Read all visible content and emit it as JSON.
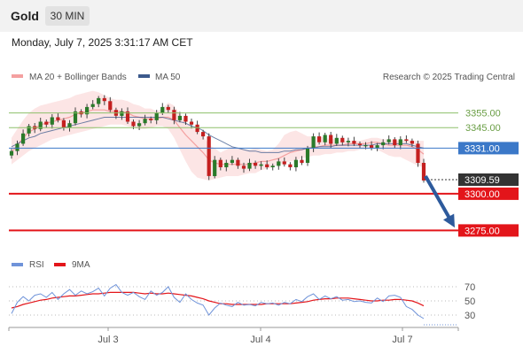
{
  "header": {
    "title": "Gold",
    "interval": "30 MIN"
  },
  "timestamp": "Monday, July 7, 2025 3:31:17 AM CET",
  "credit": "Research © 2025 Trading Central",
  "colors": {
    "bb": "#f4a0a0",
    "ma50": "#3c5a8c",
    "support": "#e3151a",
    "resistance": "#8dc06a",
    "current": "#3b78c8",
    "up": "#2a7a2a",
    "down": "#c42020",
    "arrow": "#2d5a9c",
    "rsi": "#6f93d9",
    "rsi_ma": "#e3151a"
  },
  "chart_data": [
    {
      "type": "candlestick",
      "legend": [
        {
          "label": "MA 20 + Bollinger Bands",
          "color": "#f4a0a0"
        },
        {
          "label": "MA 50",
          "color": "#3c5a8c"
        }
      ],
      "x_ticks": [
        "Jul 3",
        "Jul 4",
        "Jul 7"
      ],
      "y_range": [
        3262,
        3374
      ],
      "resistance_levels": [
        {
          "label": "3355.00",
          "value": 3355
        },
        {
          "label": "3345.00",
          "value": 3345
        }
      ],
      "current_price": {
        "label": "3331.00",
        "value": 3331
      },
      "last_price": {
        "label": "3309.59",
        "value": 3309.59
      },
      "support_levels": [
        {
          "label": "3300.00",
          "value": 3300
        },
        {
          "label": "3275.00",
          "value": 3275
        }
      ],
      "forecast_arrow": {
        "from": 3312,
        "to": 3277
      },
      "close": [
        3329,
        3334,
        3341,
        3346,
        3344,
        3349,
        3347,
        3352,
        3350,
        3345,
        3348,
        3356,
        3354,
        3359,
        3361,
        3365,
        3363,
        3357,
        3353,
        3356,
        3349,
        3346,
        3348,
        3351,
        3350,
        3355,
        3359,
        3357,
        3350,
        3353,
        3349,
        3347,
        3342,
        3339,
        3312,
        3323,
        3318,
        3321,
        3323,
        3319,
        3317,
        3321,
        3319,
        3320,
        3318,
        3319,
        3322,
        3320,
        3318,
        3323,
        3321,
        3331,
        3339,
        3335,
        3340,
        3334,
        3338,
        3335,
        3336,
        3334,
        3333,
        3333,
        3331,
        3333,
        3335,
        3337,
        3333,
        3337,
        3336,
        3334,
        3321,
        3309
      ],
      "bb_upper": [
        3338,
        3344,
        3350,
        3355,
        3358,
        3360,
        3361,
        3362,
        3363,
        3364,
        3365,
        3367,
        3368,
        3369,
        3370,
        3369,
        3367,
        3365,
        3364,
        3364,
        3363,
        3361,
        3360,
        3358,
        3358,
        3356,
        3358,
        3362,
        3360,
        3354,
        3349,
        3345,
        3343,
        3340,
        3333,
        3331,
        3328,
        3330,
        3332,
        3331,
        3330,
        3330,
        3331,
        3330,
        3329,
        3330,
        3334,
        3340,
        3342,
        3343,
        3341,
        3339,
        3339,
        3339,
        3338,
        3337,
        3337,
        3336,
        3336,
        3336,
        3336,
        3337,
        3338,
        3338,
        3337,
        3337,
        3336,
        3336,
        3337,
        3336,
        3336,
        3336
      ],
      "ma20": [
        3328,
        3333,
        3338,
        3342,
        3344,
        3347,
        3348,
        3349,
        3350,
        3351,
        3352,
        3354,
        3355,
        3356,
        3357,
        3357,
        3357,
        3356,
        3356,
        3356,
        3355,
        3353,
        3352,
        3351,
        3351,
        3351,
        3352,
        3352,
        3350,
        3345,
        3340,
        3336,
        3332,
        3328,
        3323,
        3321,
        3320,
        3320,
        3320,
        3320,
        3320,
        3320,
        3321,
        3322,
        3322,
        3323,
        3324,
        3326,
        3328,
        3329,
        3330,
        3331,
        3332,
        3332,
        3333,
        3333,
        3333,
        3333,
        3334,
        3334,
        3334,
        3334,
        3335,
        3335,
        3334,
        3333,
        3333,
        3333,
        3333,
        3332,
        3330,
        3327
      ],
      "bb_lower": [
        3320,
        3323,
        3326,
        3329,
        3331,
        3333,
        3335,
        3337,
        3338,
        3339,
        3340,
        3341,
        3342,
        3343,
        3344,
        3345,
        3346,
        3347,
        3347,
        3347,
        3346,
        3345,
        3344,
        3344,
        3345,
        3346,
        3346,
        3344,
        3338,
        3330,
        3322,
        3315,
        3311,
        3310,
        3309,
        3310,
        3311,
        3312,
        3312,
        3312,
        3313,
        3314,
        3314,
        3316,
        3317,
        3318,
        3320,
        3321,
        3322,
        3323,
        3324,
        3325,
        3326,
        3326,
        3327,
        3327,
        3328,
        3328,
        3329,
        3329,
        3330,
        3330,
        3331,
        3330,
        3328,
        3326,
        3325,
        3325,
        3323,
        3321,
        3319,
        3318
      ],
      "ma50": [
        3332,
        3334,
        3336,
        3338,
        3339,
        3341,
        3342,
        3343,
        3344,
        3345,
        3346,
        3347,
        3348,
        3349,
        3350,
        3351,
        3352,
        3352,
        3352,
        3352,
        3352,
        3352,
        3352,
        3352,
        3352,
        3352,
        3352,
        3351,
        3350,
        3349,
        3348,
        3346,
        3345,
        3343,
        3340,
        3338,
        3336,
        3334,
        3332,
        3331,
        3330,
        3329,
        3329,
        3328,
        3328,
        3328,
        3328,
        3329,
        3329,
        3330,
        3330,
        3331,
        3331,
        3332,
        3332,
        3332,
        3333,
        3333,
        3333,
        3333,
        3333,
        3333,
        3333,
        3334,
        3334,
        3334,
        3334,
        3334,
        3334,
        3333,
        3332,
        3331
      ]
    },
    {
      "type": "line",
      "title": "RSI",
      "legend": [
        {
          "label": "RSI",
          "color": "#6f93d9"
        },
        {
          "label": "9MA",
          "color": "#e3151a"
        }
      ],
      "y_range": [
        15,
        85
      ],
      "levels": [
        70,
        50,
        30
      ],
      "level_labels": [
        "70",
        "50",
        "30"
      ],
      "rsi": [
        32,
        48,
        56,
        50,
        58,
        60,
        55,
        62,
        52,
        60,
        66,
        58,
        64,
        60,
        63,
        68,
        57,
        68,
        73,
        62,
        58,
        62,
        56,
        52,
        64,
        58,
        62,
        70,
        55,
        48,
        60,
        52,
        47,
        44,
        30,
        40,
        47,
        44,
        42,
        48,
        44,
        45,
        43,
        48,
        46,
        47,
        44,
        48,
        46,
        52,
        49,
        56,
        60,
        52,
        57,
        53,
        56,
        51,
        52,
        49,
        50,
        48,
        47,
        54,
        49,
        57,
        58,
        55,
        42,
        38,
        30,
        25
      ],
      "rsi_ma": [
        40,
        42,
        45,
        47,
        49,
        51,
        52,
        54,
        55,
        56,
        57,
        57,
        58,
        59,
        60,
        60,
        61,
        62,
        62,
        62,
        62,
        62,
        61,
        60,
        61,
        60,
        60,
        61,
        60,
        59,
        58,
        57,
        55,
        53,
        50,
        48,
        46,
        46,
        45,
        45,
        45,
        45,
        45,
        45,
        46,
        46,
        46,
        46,
        46,
        47,
        48,
        49,
        51,
        52,
        53,
        53,
        54,
        54,
        54,
        53,
        52,
        51,
        50,
        50,
        51,
        51,
        52,
        52,
        51,
        50,
        47,
        43
      ]
    }
  ]
}
